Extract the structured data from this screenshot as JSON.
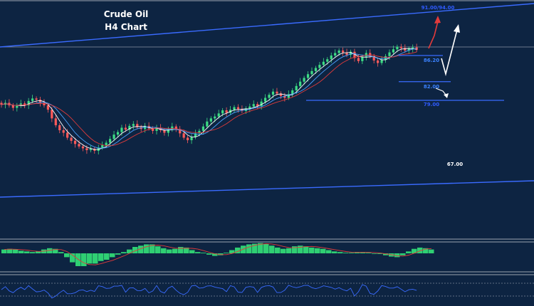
{
  "chart_data": {
    "type": "candlestick",
    "title": "Crude Oil",
    "subtitle": "H4 Chart",
    "levels": [
      {
        "label": "91.00/94.00",
        "value": 91.0,
        "color": "#2f5bff",
        "line": false
      },
      {
        "label": "86.20",
        "value": 86.2,
        "color": "#3b82ff",
        "line": true
      },
      {
        "label": "82.00",
        "value": 82.0,
        "color": "#3b82ff",
        "line": true
      },
      {
        "label": "79.00",
        "value": 79.0,
        "color": "#2f5bff",
        "line": true
      },
      {
        "label": "67.00",
        "value": 67.0,
        "color": "#ffffff",
        "line": false
      }
    ],
    "close": [
      78.3,
      78.6,
      78.2,
      77.8,
      78.1,
      78.5,
      78.2,
      78.9,
      79.3,
      79.1,
      78.6,
      78.2,
      77.5,
      76.1,
      75.0,
      74.2,
      73.8,
      73.0,
      72.5,
      72.0,
      71.6,
      71.3,
      71.0,
      71.2,
      70.9,
      71.4,
      71.8,
      72.2,
      72.8,
      73.5,
      73.9,
      74.6,
      74.3,
      74.9,
      75.2,
      74.7,
      74.4,
      74.9,
      74.5,
      74.1,
      74.6,
      74.2,
      73.8,
      74.3,
      74.8,
      74.4,
      73.7,
      73.0,
      72.6,
      73.1,
      73.7,
      74.1,
      74.8,
      75.6,
      76.1,
      76.4,
      76.9,
      77.4,
      77.0,
      77.5,
      77.9,
      77.6,
      77.3,
      77.7,
      78.0,
      78.4,
      78.1,
      78.8,
      79.4,
      79.9,
      80.4,
      80.1,
      79.7,
      79.4,
      80.0,
      80.6,
      81.3,
      82.0,
      82.6,
      83.2,
      83.7,
      84.2,
      84.7,
      85.2,
      85.6,
      86.2,
      86.6,
      87.0,
      86.7,
      86.3,
      86.8,
      85.8,
      85.3,
      86.0,
      86.6,
      86.1,
      85.4,
      85.0,
      85.5,
      86.1,
      86.7,
      87.2,
      87.6,
      87.4,
      87.0,
      87.3,
      87.5,
      87.1
    ],
    "hist": [
      0.3,
      0.35,
      0.3,
      0.2,
      0.15,
      0.1,
      0.15,
      0.3,
      0.4,
      0.35,
      0.1,
      -0.3,
      -0.7,
      -1,
      -1,
      -0.8,
      -0.8,
      -0.6,
      -0.5,
      -0.3,
      -0.1,
      0.1,
      0.3,
      0.5,
      0.6,
      0.7,
      0.7,
      0.55,
      0.4,
      0.3,
      0.35,
      0.5,
      0.45,
      0.25,
      0.1,
      0.05,
      -0.1,
      -0.2,
      -0.15,
      0.05,
      0.25,
      0.45,
      0.6,
      0.7,
      0.75,
      0.8,
      0.75,
      0.6,
      0.45,
      0.35,
      0.4,
      0.55,
      0.6,
      0.55,
      0.45,
      0.4,
      0.35,
      0.25,
      0.15,
      0.1,
      0.05,
      0.05,
      0.1,
      0.1,
      0.05,
      0,
      -0.05,
      -0.15,
      -0.25,
      -0.3,
      -0.15,
      0.15,
      0.35,
      0.45,
      0.4,
      0.3
    ]
  }
}
